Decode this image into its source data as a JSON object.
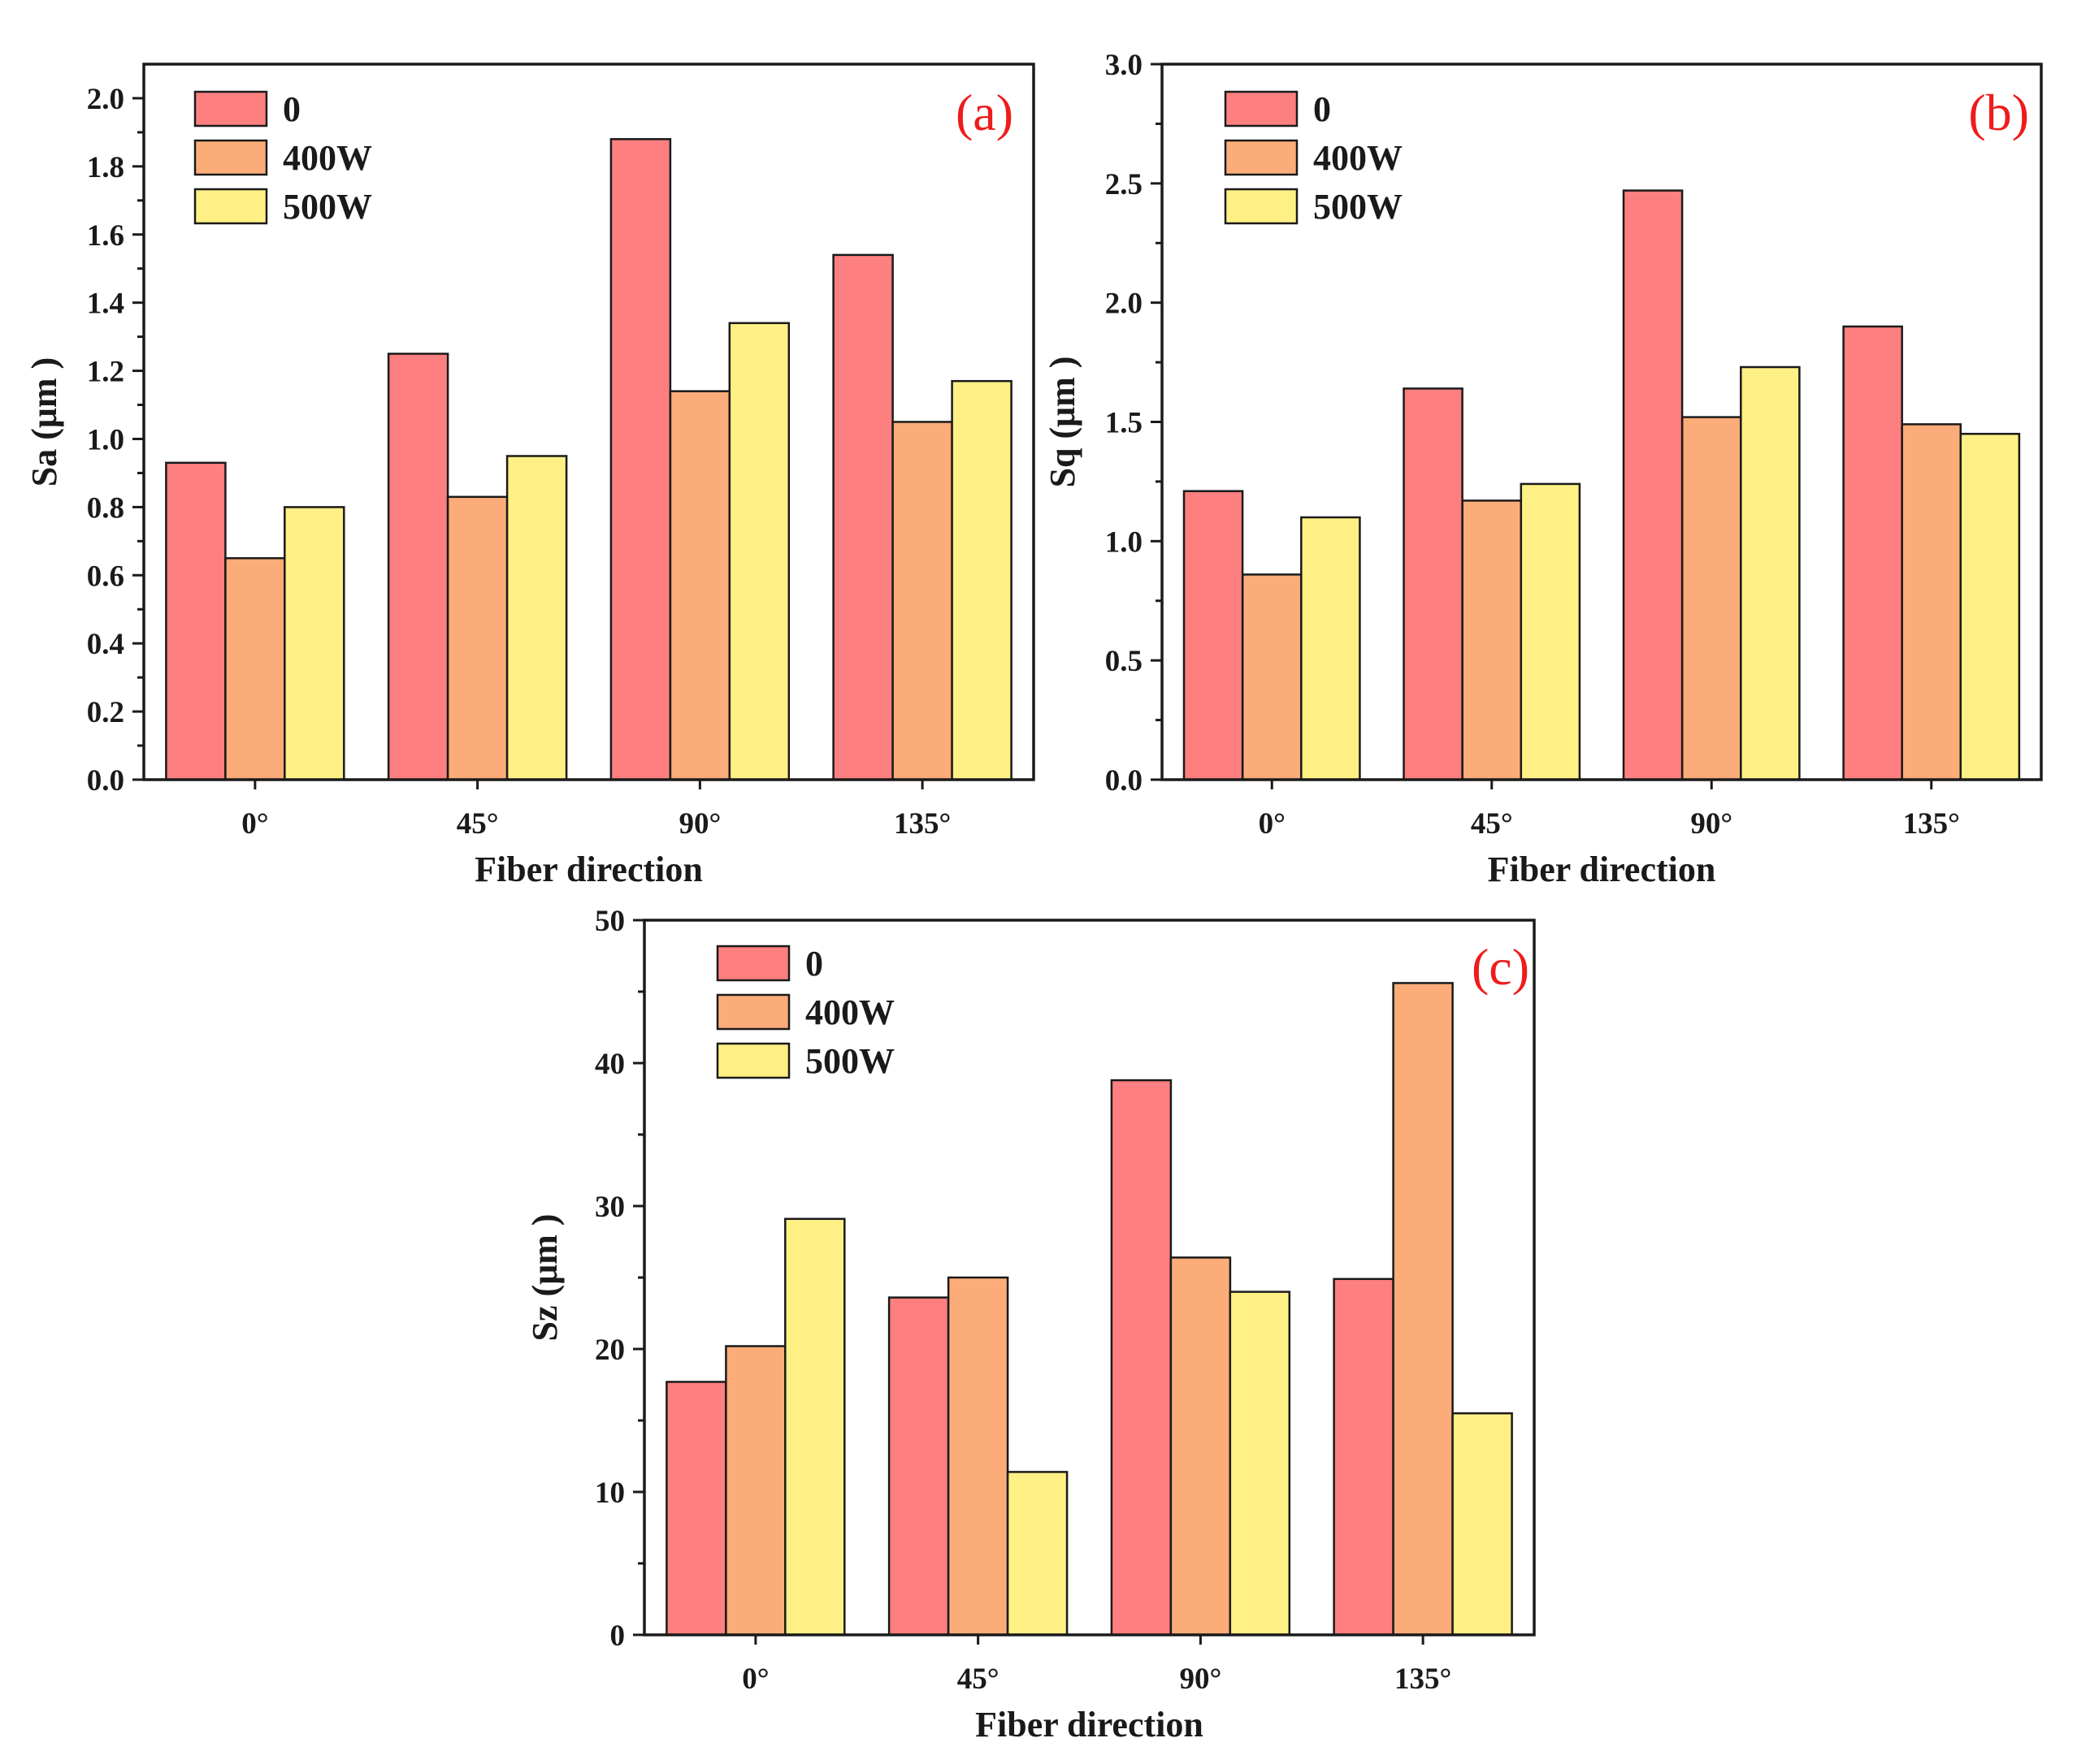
{
  "figure": {
    "legend": [
      {
        "name": "0",
        "color": "#fd7f7f"
      },
      {
        "name": "400W",
        "color": "#fbac78"
      },
      {
        "name": "500W",
        "color": "#fef084"
      }
    ],
    "panel_letter_color": "#ee1c1c"
  },
  "chart_data": [
    {
      "type": "bar",
      "panel": "(a)",
      "title": "",
      "categories": [
        "0°",
        "45°",
        "90°",
        "135°"
      ],
      "series": [
        {
          "name": "0",
          "values": [
            0.93,
            1.25,
            1.88,
            1.54
          ]
        },
        {
          "name": "400W",
          "values": [
            0.65,
            0.83,
            1.14,
            1.05
          ]
        },
        {
          "name": "500W",
          "values": [
            0.8,
            0.95,
            1.34,
            1.17
          ]
        }
      ],
      "xlabel": "Fiber direction",
      "ylabel": "Sa (μm )",
      "ylim": [
        0,
        2.1
      ],
      "yticks": [
        0.0,
        0.2,
        0.4,
        0.6,
        0.8,
        1.0,
        1.2,
        1.4,
        1.6,
        1.8,
        2.0
      ],
      "ytick_labels": [
        "0.0",
        "0.2",
        "0.4",
        "0.6",
        "0.8",
        "1.0",
        "1.2",
        "1.4",
        "1.6",
        "1.8",
        "2.0"
      ],
      "legend_position": "top-left",
      "grid": false
    },
    {
      "type": "bar",
      "panel": "(b)",
      "title": "",
      "categories": [
        "0°",
        "45°",
        "90°",
        "135°"
      ],
      "series": [
        {
          "name": "0",
          "values": [
            1.21,
            1.64,
            2.47,
            1.9
          ]
        },
        {
          "name": "400W",
          "values": [
            0.86,
            1.17,
            1.52,
            1.49
          ]
        },
        {
          "name": "500W",
          "values": [
            1.1,
            1.24,
            1.73,
            1.45
          ]
        }
      ],
      "xlabel": "Fiber direction",
      "ylabel": "Sq (μm )",
      "ylim": [
        0,
        3.0
      ],
      "yticks": [
        0.0,
        0.5,
        1.0,
        1.5,
        2.0,
        2.5,
        3.0
      ],
      "ytick_labels": [
        "0.0",
        "0.5",
        "1.0",
        "1.5",
        "2.0",
        "2.5",
        "3.0"
      ],
      "legend_position": "top-left",
      "grid": false
    },
    {
      "type": "bar",
      "panel": "(c)",
      "title": "",
      "categories": [
        "0°",
        "45°",
        "90°",
        "135°"
      ],
      "series": [
        {
          "name": "0",
          "values": [
            17.7,
            23.6,
            38.8,
            24.9
          ]
        },
        {
          "name": "400W",
          "values": [
            20.2,
            25.0,
            26.4,
            45.6
          ]
        },
        {
          "name": "500W",
          "values": [
            29.1,
            11.4,
            24.0,
            15.5
          ]
        }
      ],
      "xlabel": "Fiber direction",
      "ylabel": "Sz (μm )",
      "ylim": [
        0,
        50
      ],
      "yticks": [
        0,
        10,
        20,
        30,
        40,
        50
      ],
      "ytick_labels": [
        "0",
        "10",
        "20",
        "30",
        "40",
        "50"
      ],
      "legend_position": "top-left",
      "grid": false
    }
  ]
}
